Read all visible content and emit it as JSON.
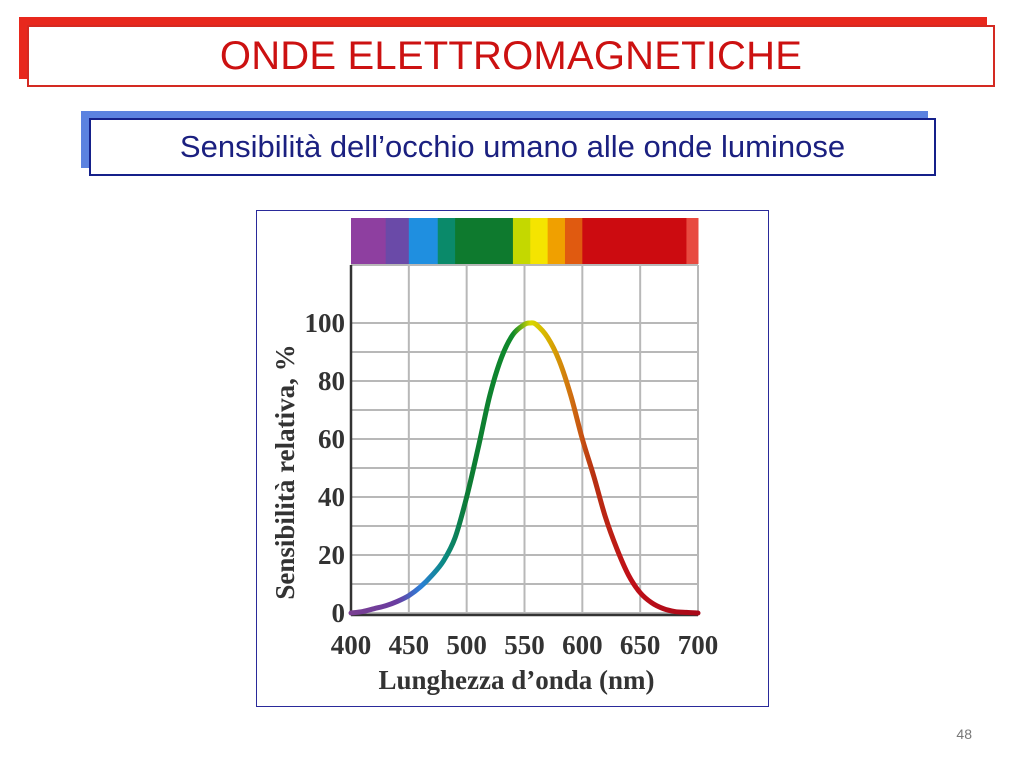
{
  "slide": {
    "title": "ONDE ELETTROMAGNETICHE",
    "subtitle": "Sensibilità dell’occhio umano alle onde luminose",
    "page_number": "48"
  },
  "chart_data": {
    "type": "line",
    "xlabel": "Lunghezza d’onda (nm)",
    "ylabel": "Sensibilità relativa, %",
    "xlim": [
      400,
      700
    ],
    "ylim": [
      0,
      100
    ],
    "x_ticks": [
      "400",
      "450",
      "500",
      "550",
      "600",
      "650",
      "700"
    ],
    "y_ticks": [
      "0",
      "20",
      "40",
      "60",
      "80",
      "100"
    ],
    "grid": true,
    "spectrum_bar": [
      {
        "from": 400,
        "to": 430,
        "color": "#8e3fa0"
      },
      {
        "from": 430,
        "to": 450,
        "color": "#6a4aa8"
      },
      {
        "from": 450,
        "to": 475,
        "color": "#1f8fe0"
      },
      {
        "from": 475,
        "to": 490,
        "color": "#0a8a6a"
      },
      {
        "from": 490,
        "to": 540,
        "color": "#0e7a2e"
      },
      {
        "from": 540,
        "to": 555,
        "color": "#c4d800"
      },
      {
        "from": 555,
        "to": 570,
        "color": "#f5e400"
      },
      {
        "from": 570,
        "to": 585,
        "color": "#f0a000"
      },
      {
        "from": 585,
        "to": 600,
        "color": "#e05a10"
      },
      {
        "from": 600,
        "to": 690,
        "color": "#cc0b10"
      },
      {
        "from": 690,
        "to": 700,
        "color": "#e84a40"
      }
    ],
    "series": [
      {
        "x": [
          400,
          410,
          420,
          430,
          440,
          450,
          460,
          470,
          480,
          490,
          500,
          510,
          520,
          530,
          540,
          550,
          555,
          560,
          570,
          580,
          590,
          600,
          610,
          620,
          630,
          640,
          650,
          660,
          670,
          680,
          690,
          700
        ],
        "y": [
          0,
          0.5,
          1.5,
          2.5,
          4,
          6,
          9,
          13,
          18,
          26,
          40,
          57,
          75,
          88,
          96,
          99.5,
          100,
          99.5,
          95,
          87,
          75,
          60,
          47,
          33,
          22,
          13,
          7,
          3.5,
          1.5,
          0.5,
          0.2,
          0
        ]
      }
    ]
  }
}
